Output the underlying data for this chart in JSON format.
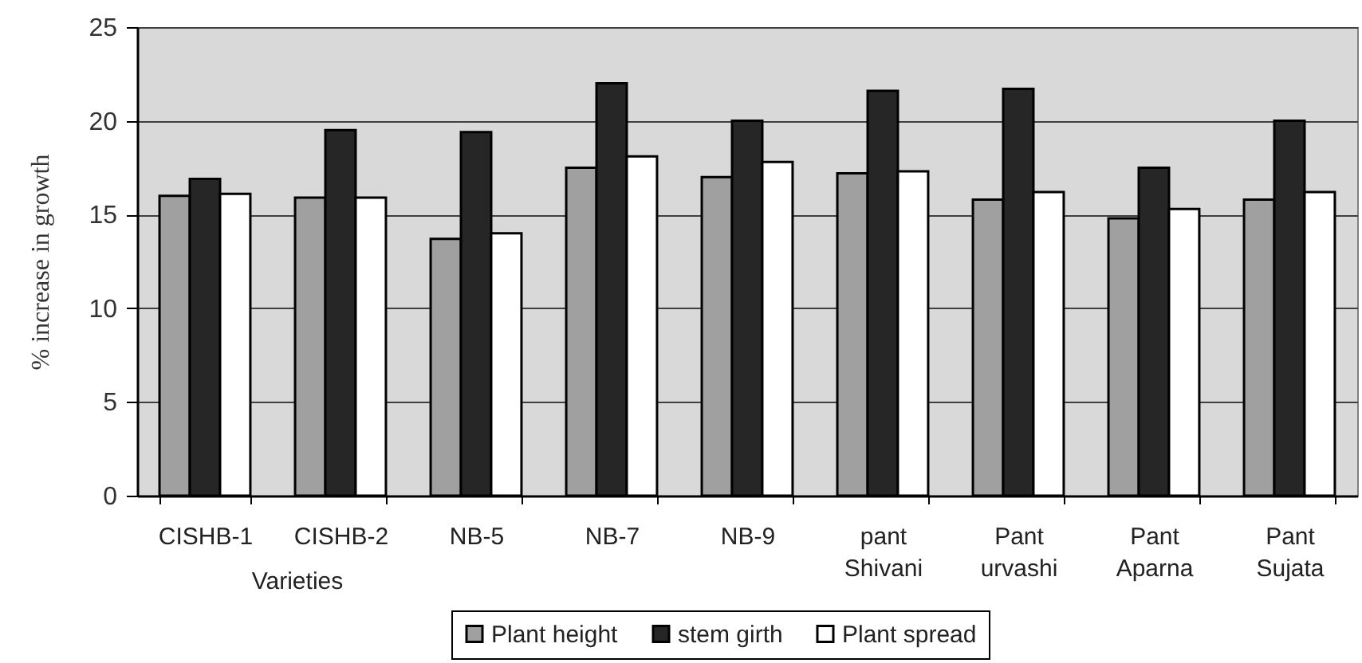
{
  "chart_data": {
    "type": "bar",
    "categories": [
      "CISHB-1",
      "CISHB-2",
      "NB-5",
      "NB-7",
      "NB-9",
      "pant Shivani",
      "Pant urvashi",
      "Pant Aparna",
      "Pant Sujata"
    ],
    "series": [
      {
        "name": "Plant height",
        "color": "#a0a0a0",
        "values": [
          16.0,
          15.9,
          13.7,
          17.5,
          17.0,
          17.2,
          15.8,
          14.8,
          15.8
        ]
      },
      {
        "name": "stem girth",
        "color": "#262626",
        "values": [
          16.9,
          19.5,
          19.4,
          22.0,
          20.0,
          21.6,
          21.7,
          17.5,
          20.0
        ]
      },
      {
        "name": "Plant spread",
        "color": "#ffffff",
        "values": [
          16.1,
          15.9,
          14.0,
          18.1,
          17.8,
          17.3,
          16.2,
          15.3,
          16.2
        ]
      }
    ],
    "xlabel": "Varieties",
    "ylabel": "% increase in growth",
    "ylim": [
      0,
      25
    ],
    "yticks": [
      0,
      5,
      10,
      15,
      20,
      25
    ],
    "grid": "y",
    "legend": "bottom"
  }
}
